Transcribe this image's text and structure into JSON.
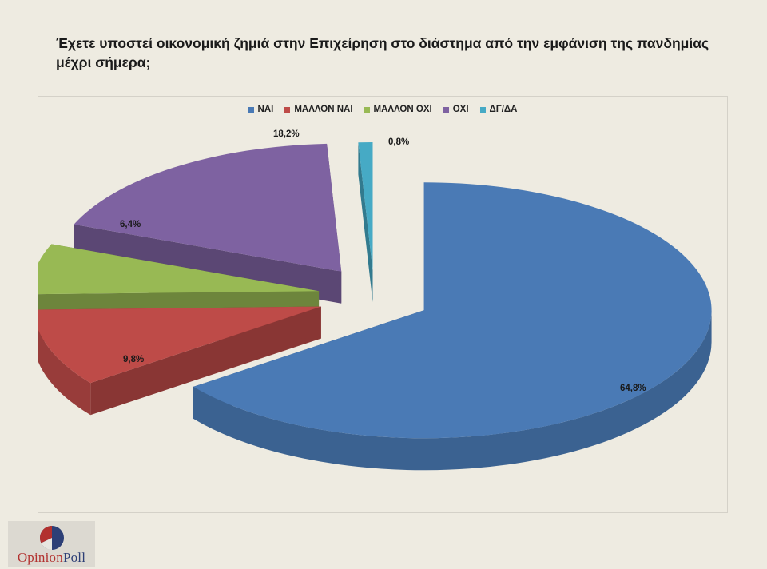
{
  "title": "Έχετε υποστεί οικονομική ζημιά στην Επιχείρηση στο διάστημα από την εμφάνιση της πανδημίας μέχρι σήμερα;",
  "chart_data": {
    "type": "pie",
    "style": "3d-exploded",
    "title": "Έχετε υποστεί οικονομική ζημιά στην Επιχείρηση στο διάστημα από την εμφάνιση της πανδημίας μέχρι σήμερα;",
    "legend_position": "top",
    "categories": [
      "ΝΑΙ",
      "ΜΑΛΛΟΝ ΝΑΙ",
      "ΜΑΛΛΟΝ ΟΧΙ",
      "ΟΧΙ",
      "ΔΓ/ΔΑ"
    ],
    "values": [
      64.8,
      9.8,
      6.4,
      18.2,
      0.8
    ],
    "labels": [
      "64,8%",
      "9,8%",
      "6,4%",
      "18,2%",
      "0,8%"
    ],
    "colors": [
      "#4a7ab5",
      "#be4b48",
      "#98b954",
      "#7e62a1",
      "#46aac5"
    ]
  },
  "logo": {
    "part1": "Opinion",
    "part2": "Poll"
  }
}
